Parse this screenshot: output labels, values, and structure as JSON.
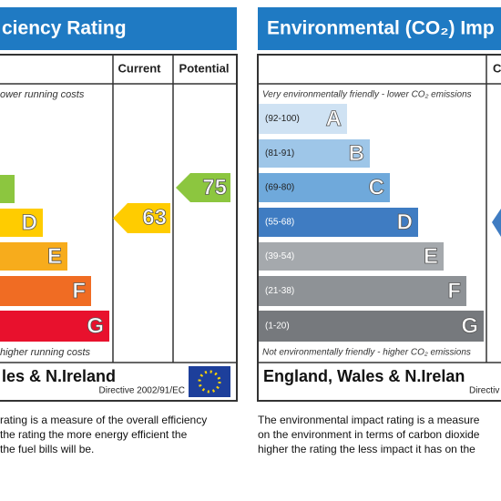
{
  "energy_panel": {
    "title": "ciency Rating",
    "columns": [
      "Current",
      "Potential"
    ],
    "top_note": "ower running costs",
    "bottom_note": "higher running costs",
    "bands": [
      "D",
      "E",
      "F",
      "G"
    ],
    "current": 63,
    "potential": 75,
    "footer_region": "les & N.Ireland",
    "footer_directive": "Directive 2002/91/EC",
    "description": [
      "rating is a measure of the overall efficiency",
      "the rating the more energy efficient the",
      "the fuel bills will be."
    ]
  },
  "env_panel": {
    "title": "Environmental (CO₂) Imp",
    "column_fragment": "C",
    "top_note": "Very environmentally friendly - lower CO₂ emissions",
    "bottom_note": "Not environmentally friendly - higher CO₂ emissions",
    "bands": [
      {
        "range": "(92-100)",
        "letter": "A"
      },
      {
        "range": "(81-91)",
        "letter": "B"
      },
      {
        "range": "(69-80)",
        "letter": "C"
      },
      {
        "range": "(55-68)",
        "letter": "D"
      },
      {
        "range": "(39-54)",
        "letter": "E"
      },
      {
        "range": "(21-38)",
        "letter": "F"
      },
      {
        "range": "(1-20)",
        "letter": "G"
      }
    ],
    "footer_region": "England, Wales & N.Irelan",
    "footer_directive": "Directiv",
    "description": [
      "The environmental impact rating is a measure",
      "on the environment in terms of carbon dioxide",
      "higher the rating the less impact it has on the"
    ]
  }
}
